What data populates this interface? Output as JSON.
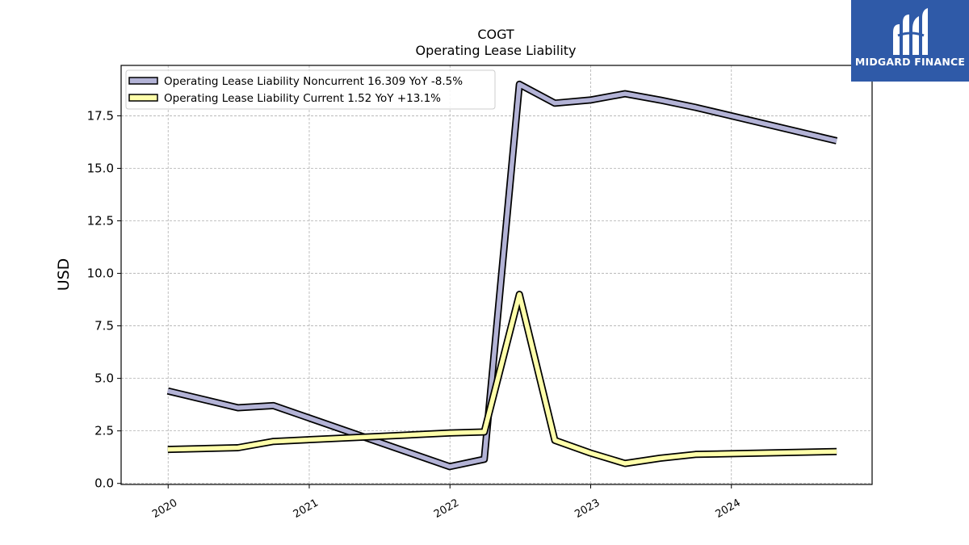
{
  "chart_data": {
    "type": "line",
    "title": "COGT",
    "subtitle": "Operating Lease Liability",
    "ylabel": "USD",
    "xlim": [
      "2019-09-01",
      "2024-12-31"
    ],
    "ylim": [
      -0.05,
      19.9
    ],
    "x_ticks": [
      "2020",
      "2021",
      "2022",
      "2023",
      "2024"
    ],
    "y_ticks": [
      "0.0",
      "2.5",
      "5.0",
      "7.5",
      "10.0",
      "12.5",
      "15.0",
      "17.5"
    ],
    "grid": true,
    "legend_position": "top-left",
    "series": [
      {
        "name": "Operating Lease Liability Noncurrent  16.309 YoY -8.5%",
        "color": "#b3b3d6",
        "points": [
          [
            "2019-12-31",
            4.4
          ],
          [
            "2020-06-30",
            3.6
          ],
          [
            "2020-09-30",
            3.7
          ],
          [
            "2021-12-31",
            0.8
          ],
          [
            "2022-03-31",
            1.15
          ],
          [
            "2022-06-30",
            19.0
          ],
          [
            "2022-09-30",
            18.1
          ],
          [
            "2022-12-31",
            18.25
          ],
          [
            "2023-03-31",
            18.55
          ],
          [
            "2023-06-30",
            18.25
          ],
          [
            "2023-09-30",
            17.9
          ],
          [
            "2024-09-30",
            16.31
          ]
        ]
      },
      {
        "name": "Operating Lease Liability Current  1.52 YoY +13.1%",
        "color": "#ffffaa",
        "points": [
          [
            "2019-12-31",
            1.62
          ],
          [
            "2020-06-30",
            1.7
          ],
          [
            "2020-09-30",
            2.0
          ],
          [
            "2021-12-31",
            2.4
          ],
          [
            "2022-03-31",
            2.45
          ],
          [
            "2022-06-30",
            9.0
          ],
          [
            "2022-09-30",
            2.05
          ],
          [
            "2022-12-31",
            1.45
          ],
          [
            "2023-03-31",
            0.95
          ],
          [
            "2023-06-30",
            1.2
          ],
          [
            "2023-09-30",
            1.38
          ],
          [
            "2024-09-30",
            1.52
          ]
        ]
      }
    ]
  },
  "logo": {
    "brand": "MIDGARD FINANCE",
    "background": "#2f5aa8"
  }
}
